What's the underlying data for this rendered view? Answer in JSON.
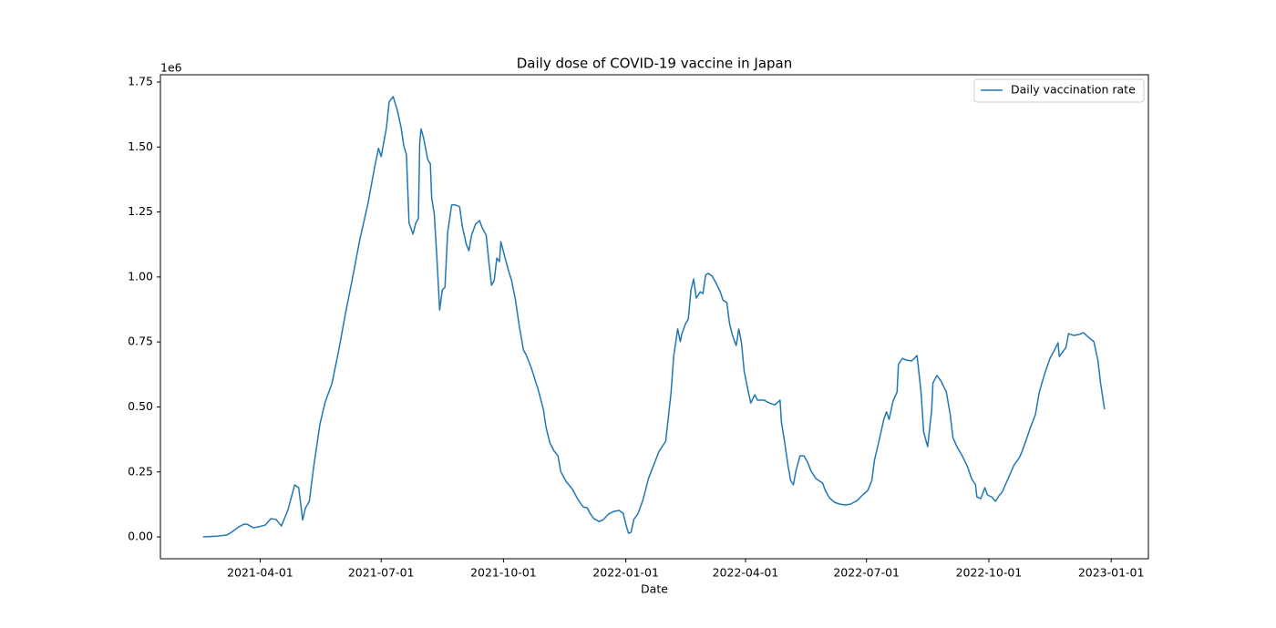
{
  "chart_data": {
    "type": "line",
    "title": "Daily dose of COVID-19 vaccine in Japan",
    "xlabel": "Date",
    "y_offset_label": "1e6",
    "x": [
      "2021-02-17",
      "2021-02-28",
      "2021-03-07",
      "2021-03-11",
      "2021-03-16",
      "2021-03-20",
      "2021-03-22",
      "2021-03-27",
      "2021-03-31",
      "2021-04-05",
      "2021-04-09",
      "2021-04-13",
      "2021-04-17",
      "2021-04-22",
      "2021-04-24",
      "2021-04-27",
      "2021-04-30",
      "2021-05-03",
      "2021-05-05",
      "2021-05-08",
      "2021-05-11",
      "2021-05-13",
      "2021-05-16",
      "2021-05-20",
      "2021-05-25",
      "2021-05-30",
      "2021-06-04",
      "2021-06-10",
      "2021-06-15",
      "2021-06-21",
      "2021-06-26",
      "2021-06-29",
      "2021-07-01",
      "2021-07-05",
      "2021-07-07",
      "2021-07-10",
      "2021-07-13",
      "2021-07-16",
      "2021-07-18",
      "2021-07-20",
      "2021-07-22",
      "2021-07-25",
      "2021-07-27",
      "2021-07-29",
      "2021-07-30",
      "2021-07-31",
      "2021-08-02",
      "2021-08-05",
      "2021-08-07",
      "2021-08-08",
      "2021-08-10",
      "2021-08-12",
      "2021-08-14",
      "2021-08-16",
      "2021-08-18",
      "2021-08-20",
      "2021-08-23",
      "2021-08-26",
      "2021-08-29",
      "2021-08-31",
      "2021-09-03",
      "2021-09-05",
      "2021-09-07",
      "2021-09-10",
      "2021-09-13",
      "2021-09-15",
      "2021-09-18",
      "2021-09-20",
      "2021-09-22",
      "2021-09-24",
      "2021-09-26",
      "2021-09-28",
      "2021-09-29",
      "2021-10-02",
      "2021-10-05",
      "2021-10-07",
      "2021-10-10",
      "2021-10-13",
      "2021-10-16",
      "2021-10-18",
      "2021-10-22",
      "2021-10-27",
      "2021-10-31",
      "2021-11-02",
      "2021-11-05",
      "2021-11-08",
      "2021-11-11",
      "2021-11-13",
      "2021-11-17",
      "2021-11-22",
      "2021-11-26",
      "2021-11-30",
      "2021-12-03",
      "2021-12-05",
      "2021-12-08",
      "2021-12-12",
      "2021-12-15",
      "2021-12-19",
      "2021-12-23",
      "2021-12-27",
      "2021-12-30",
      "2022-01-01",
      "2022-01-03",
      "2022-01-05",
      "2022-01-07",
      "2022-01-10",
      "2022-01-14",
      "2022-01-18",
      "2022-01-22",
      "2022-01-26",
      "2022-01-31",
      "2022-02-04",
      "2022-02-06",
      "2022-02-09",
      "2022-02-11",
      "2022-02-12",
      "2022-02-15",
      "2022-02-17",
      "2022-02-19",
      "2022-02-21",
      "2022-02-23",
      "2022-02-26",
      "2022-02-28",
      "2022-03-02",
      "2022-03-04",
      "2022-03-07",
      "2022-03-10",
      "2022-03-13",
      "2022-03-15",
      "2022-03-18",
      "2022-03-20",
      "2022-03-22",
      "2022-03-25",
      "2022-03-27",
      "2022-03-29",
      "2022-03-31",
      "2022-04-03",
      "2022-04-05",
      "2022-04-08",
      "2022-04-10",
      "2022-04-15",
      "2022-04-19",
      "2022-04-23",
      "2022-04-27",
      "2022-04-28",
      "2022-04-30",
      "2022-05-01",
      "2022-05-03",
      "2022-05-05",
      "2022-05-07",
      "2022-05-09",
      "2022-05-12",
      "2022-05-15",
      "2022-05-18",
      "2022-05-20",
      "2022-05-24",
      "2022-05-29",
      "2022-05-31",
      "2022-06-03",
      "2022-06-07",
      "2022-06-11",
      "2022-06-15",
      "2022-06-19",
      "2022-06-24",
      "2022-06-28",
      "2022-07-02",
      "2022-07-05",
      "2022-07-07",
      "2022-07-11",
      "2022-07-14",
      "2022-07-16",
      "2022-07-18",
      "2022-07-21",
      "2022-07-24",
      "2022-07-25",
      "2022-07-28",
      "2022-07-31",
      "2022-08-04",
      "2022-08-06",
      "2022-08-08",
      "2022-08-11",
      "2022-08-13",
      "2022-08-16",
      "2022-08-19",
      "2022-08-20",
      "2022-08-23",
      "2022-08-26",
      "2022-08-30",
      "2022-09-02",
      "2022-09-04",
      "2022-09-07",
      "2022-09-11",
      "2022-09-15",
      "2022-09-18",
      "2022-09-21",
      "2022-09-22",
      "2022-09-25",
      "2022-09-28",
      "2022-09-30",
      "2022-10-03",
      "2022-10-06",
      "2022-10-09",
      "2022-10-11",
      "2022-10-14",
      "2022-10-17",
      "2022-10-20",
      "2022-10-24",
      "2022-10-26",
      "2022-10-29",
      "2022-11-01",
      "2022-11-05",
      "2022-11-08",
      "2022-11-12",
      "2022-11-16",
      "2022-11-19",
      "2022-11-22",
      "2022-11-23",
      "2022-11-26",
      "2022-11-28",
      "2022-11-30",
      "2022-12-04",
      "2022-12-08",
      "2022-12-11",
      "2022-12-15",
      "2022-12-19",
      "2022-12-22",
      "2022-12-24",
      "2022-12-27"
    ],
    "series": [
      {
        "name": "Daily vaccination rate",
        "color": "#1f77b4",
        "values": [
          0,
          0.003,
          0.007,
          0.02,
          0.039,
          0.049,
          0.049,
          0.035,
          0.039,
          0.046,
          0.07,
          0.067,
          0.042,
          0.105,
          0.144,
          0.2,
          0.189,
          0.065,
          0.11,
          0.137,
          0.26,
          0.33,
          0.435,
          0.52,
          0.59,
          0.715,
          0.855,
          1.01,
          1.145,
          1.28,
          1.42,
          1.495,
          1.463,
          1.575,
          1.673,
          1.694,
          1.645,
          1.575,
          1.505,
          1.47,
          1.207,
          1.165,
          1.207,
          1.225,
          1.515,
          1.57,
          1.533,
          1.452,
          1.435,
          1.305,
          1.24,
          1.066,
          0.873,
          0.95,
          0.96,
          1.17,
          1.277,
          1.277,
          1.27,
          1.196,
          1.126,
          1.101,
          1.161,
          1.203,
          1.217,
          1.189,
          1.161,
          1.059,
          0.968,
          0.986,
          1.073,
          1.059,
          1.136,
          1.077,
          1.021,
          0.989,
          0.912,
          0.807,
          0.719,
          0.701,
          0.649,
          0.568,
          0.491,
          0.421,
          0.36,
          0.331,
          0.312,
          0.252,
          0.214,
          0.182,
          0.144,
          0.115,
          0.112,
          0.091,
          0.07,
          0.059,
          0.066,
          0.088,
          0.098,
          0.102,
          0.091,
          0.049,
          0.014,
          0.018,
          0.067,
          0.088,
          0.144,
          0.224,
          0.277,
          0.329,
          0.368,
          0.554,
          0.694,
          0.8,
          0.751,
          0.779,
          0.821,
          0.838,
          0.95,
          0.992,
          0.919,
          0.943,
          0.936,
          1.007,
          1.014,
          1.003,
          0.975,
          0.943,
          0.912,
          0.901,
          0.821,
          0.779,
          0.736,
          0.8,
          0.747,
          0.638,
          0.561,
          0.515,
          0.547,
          0.526,
          0.526,
          0.515,
          0.508,
          0.526,
          0.442,
          0.379,
          0.344,
          0.273,
          0.217,
          0.2,
          0.256,
          0.312,
          0.312,
          0.284,
          0.256,
          0.224,
          0.207,
          0.179,
          0.151,
          0.133,
          0.126,
          0.123,
          0.126,
          0.14,
          0.161,
          0.179,
          0.217,
          0.295,
          0.382,
          0.452,
          0.481,
          0.452,
          0.523,
          0.558,
          0.663,
          0.687,
          0.68,
          0.677,
          0.687,
          0.698,
          0.558,
          0.403,
          0.347,
          0.488,
          0.593,
          0.621,
          0.6,
          0.558,
          0.47,
          0.382,
          0.347,
          0.312,
          0.27,
          0.224,
          0.2,
          0.154,
          0.147,
          0.189,
          0.161,
          0.154,
          0.137,
          0.161,
          0.172,
          0.207,
          0.242,
          0.277,
          0.305,
          0.329,
          0.372,
          0.417,
          0.47,
          0.558,
          0.628,
          0.687,
          0.715,
          0.747,
          0.694,
          0.715,
          0.729,
          0.782,
          0.775,
          0.779,
          0.786,
          0.768,
          0.751,
          0.68,
          0.593,
          0.491
        ]
      }
    ],
    "xlim": [
      "2021-01-16",
      "2023-01-29"
    ],
    "xticks": [
      "2021-04-01",
      "2021-07-01",
      "2021-10-01",
      "2022-01-01",
      "2022-04-01",
      "2022-07-01",
      "2022-10-01",
      "2023-01-01"
    ],
    "ylim": [
      -0.084,
      1.778
    ],
    "yticks": [
      {
        "value": 0,
        "label": "0.00"
      },
      0.25,
      {
        "value": 0.5,
        "label": "0.50"
      },
      0.75,
      {
        "value": 1,
        "label": "1.00"
      },
      1.25,
      {
        "value": 1.5,
        "label": "1.50"
      },
      1.75
    ],
    "legend": "upper right"
  }
}
